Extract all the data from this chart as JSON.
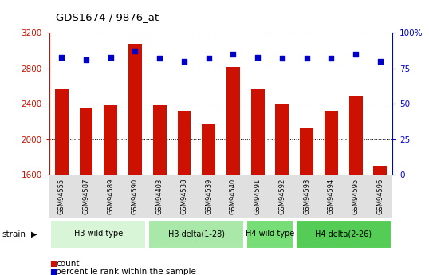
{
  "title": "GDS1674 / 9876_at",
  "samples": [
    "GSM94555",
    "GSM94587",
    "GSM94589",
    "GSM94590",
    "GSM94403",
    "GSM94538",
    "GSM94539",
    "GSM94540",
    "GSM94591",
    "GSM94592",
    "GSM94593",
    "GSM94594",
    "GSM94595",
    "GSM94596"
  ],
  "counts": [
    2560,
    2360,
    2380,
    3080,
    2380,
    2320,
    2180,
    2820,
    2560,
    2400,
    2130,
    2320,
    2480,
    1700
  ],
  "percentiles": [
    83,
    81,
    83,
    87,
    82,
    80,
    82,
    85,
    83,
    82,
    82,
    82,
    85,
    80
  ],
  "groups": [
    {
      "label": "H3 wild type",
      "start": 0,
      "end": 4,
      "color": "#d8f5d8"
    },
    {
      "label": "H3 delta(1-28)",
      "start": 4,
      "end": 8,
      "color": "#aae8aa"
    },
    {
      "label": "H4 wild type",
      "start": 8,
      "end": 10,
      "color": "#77dd77"
    },
    {
      "label": "H4 delta(2-26)",
      "start": 10,
      "end": 14,
      "color": "#55cc55"
    }
  ],
  "ylim_left": [
    1600,
    3200
  ],
  "ylim_right": [
    0,
    100
  ],
  "yticks_left": [
    1600,
    2000,
    2400,
    2800,
    3200
  ],
  "yticks_right": [
    0,
    25,
    50,
    75,
    100
  ],
  "bar_color": "#cc1100",
  "dot_color": "#0000cc",
  "left_tick_color": "#cc1100",
  "right_tick_color": "#0000cc",
  "strain_label": "strain",
  "legend_count": "count",
  "legend_pct": "percentile rank within the sample"
}
